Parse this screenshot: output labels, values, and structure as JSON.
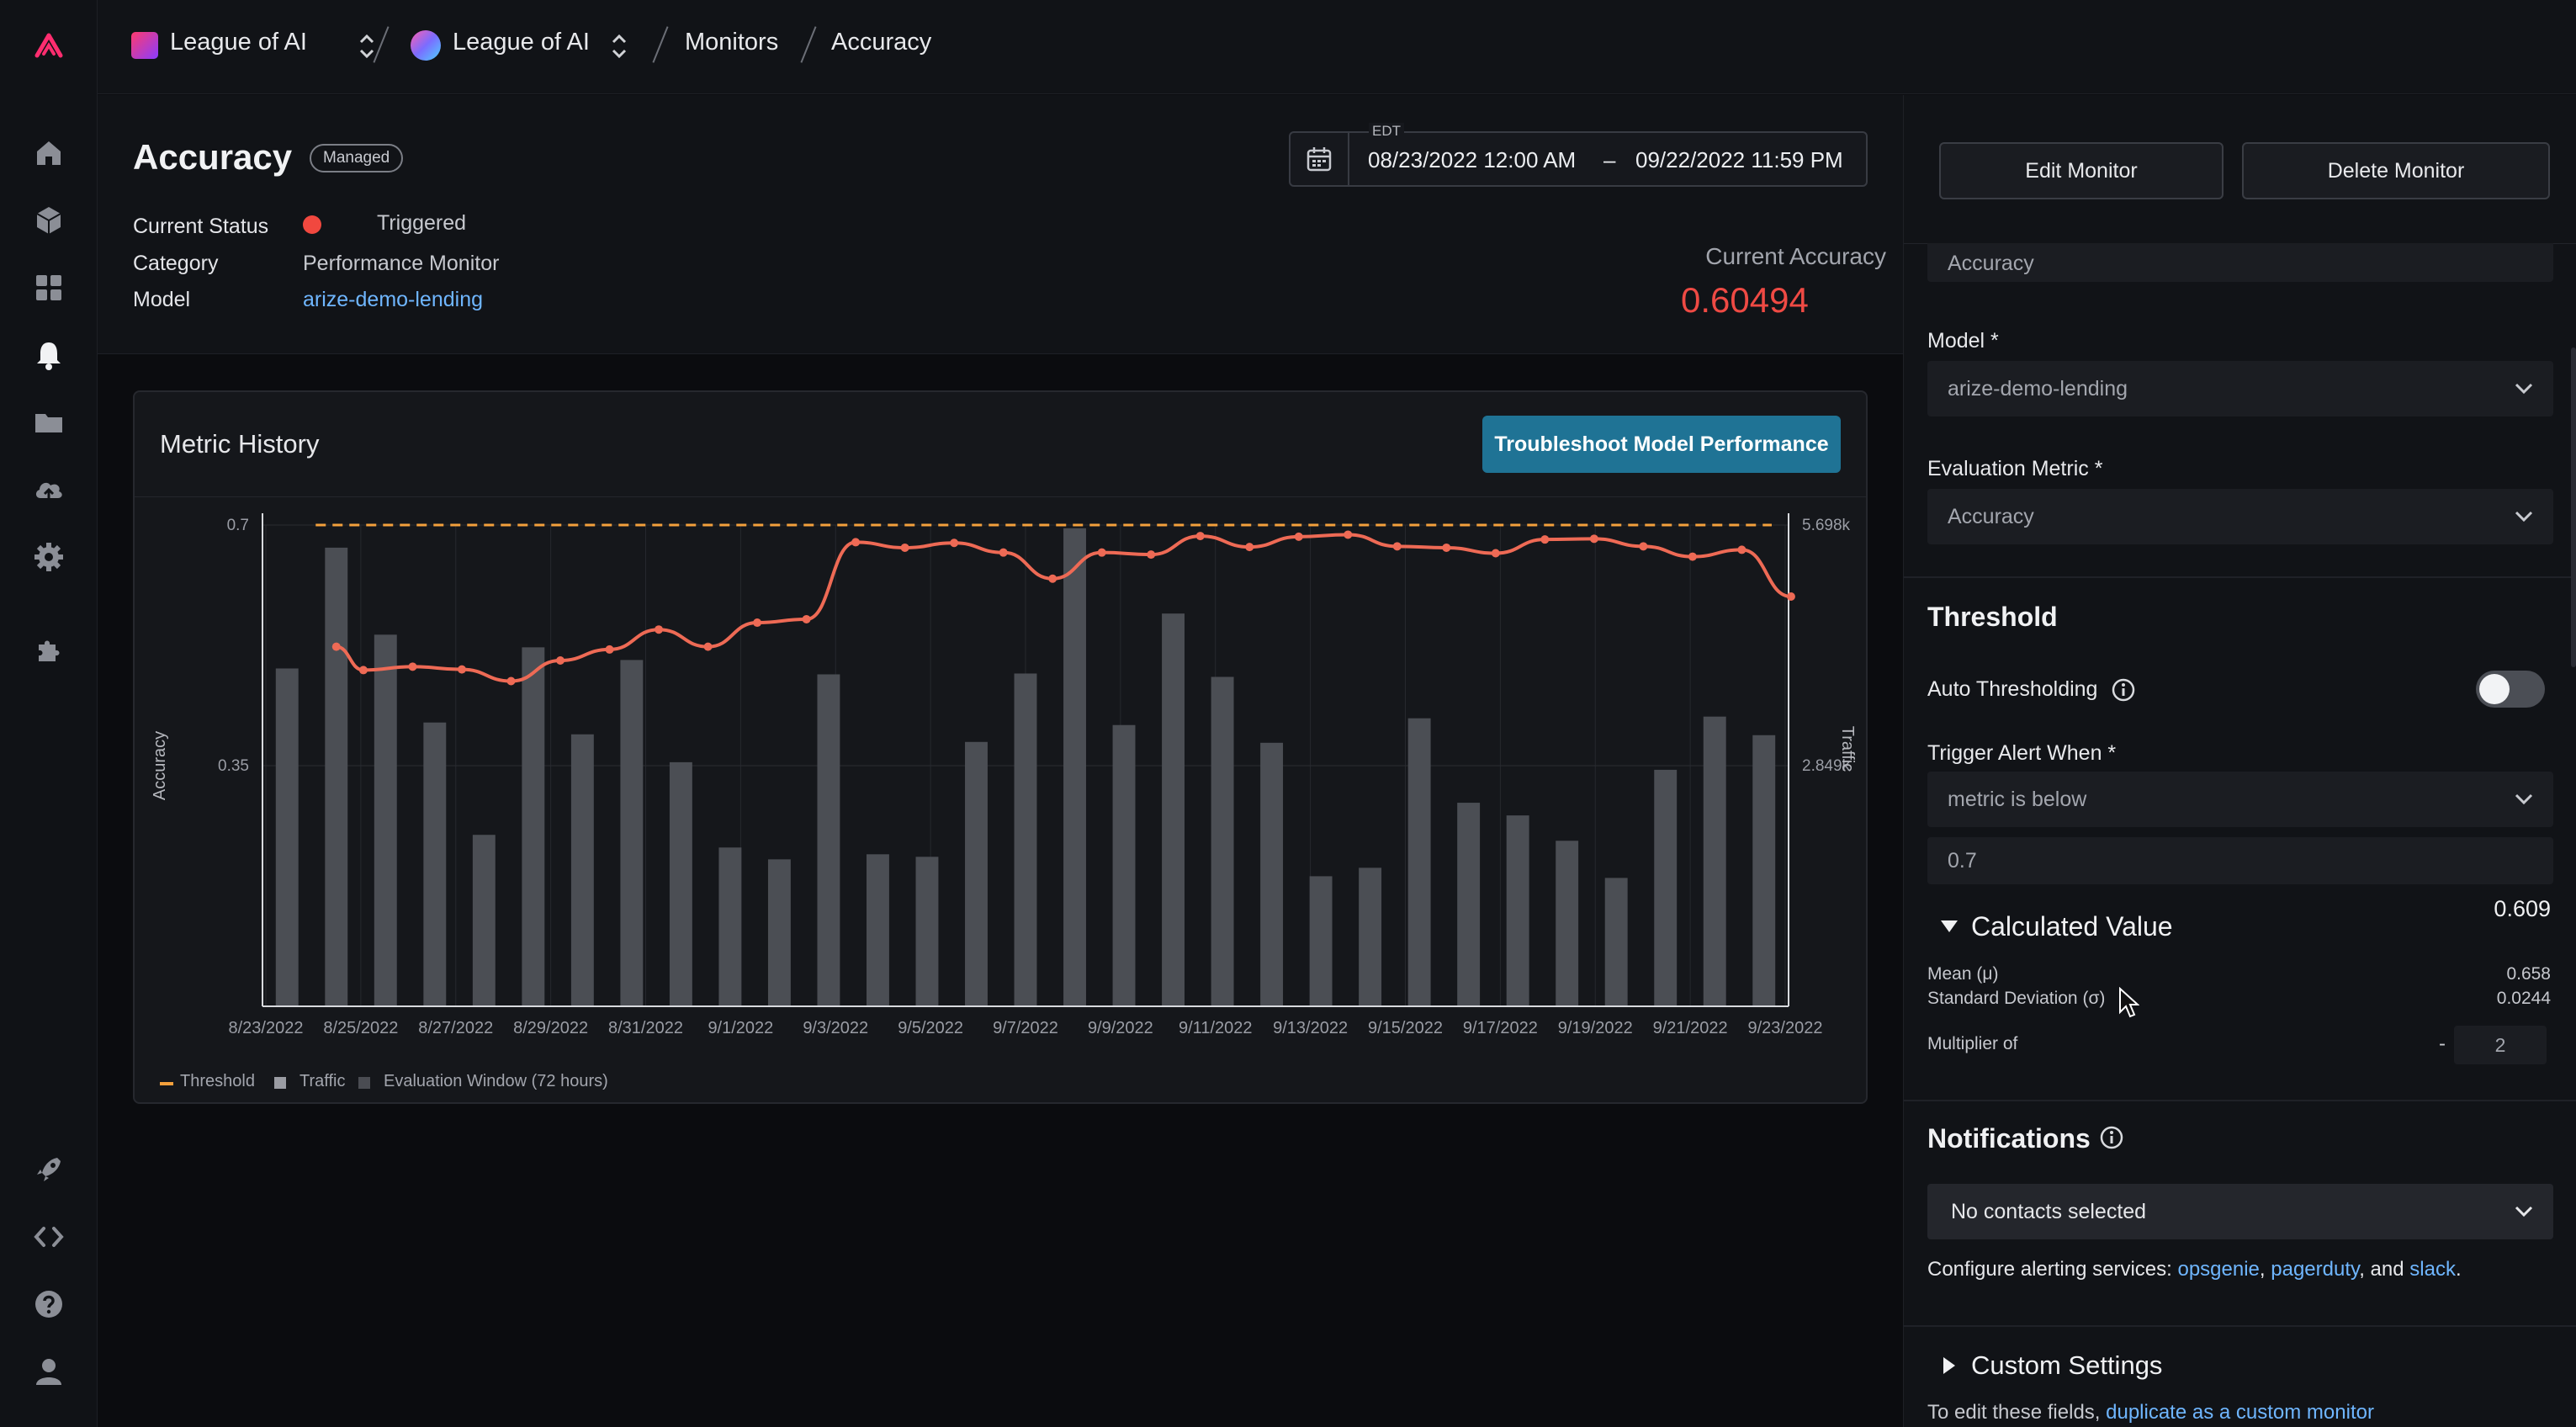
{
  "breadcrumb": {
    "space": "League of AI",
    "org": "League of AI",
    "section": "Monitors",
    "page": "Accuracy"
  },
  "header": {
    "title": "Accuracy",
    "badge": "Managed",
    "status_label": "Current Status",
    "status_value": "Triggered",
    "category_label": "Category",
    "category_value": "Performance Monitor",
    "model_label": "Model",
    "model_value": "arize-demo-lending",
    "date_tz": "EDT",
    "date_start": "08/23/2022 12:00 AM",
    "date_sep": "–",
    "date_end": "09/22/2022 11:59 PM",
    "current_label": "Current Accuracy",
    "current_value": "0.60494"
  },
  "card": {
    "title": "Metric History",
    "troubleshoot_label": "Troubleshoot Model Performance"
  },
  "chart_data": {
    "type": "bar",
    "ylabel": "Accuracy",
    "y2label": "Traffic",
    "ylim": [
      0,
      0.7
    ],
    "y2lim": [
      0,
      5.698
    ],
    "y_ticks": [
      "0.35",
      "0.7"
    ],
    "y2_ticks": [
      "2.849k",
      "5.698k"
    ],
    "x_tick_labels": [
      "8/23/2022",
      "8/25/2022",
      "8/27/2022",
      "8/29/2022",
      "8/31/2022",
      "9/1/2022",
      "9/3/2022",
      "9/5/2022",
      "9/7/2022",
      "9/9/2022",
      "9/11/2022",
      "9/13/2022",
      "9/15/2022",
      "9/17/2022",
      "9/19/2022",
      "9/21/2022",
      "9/23/2022"
    ],
    "threshold": 0.7,
    "traffic": [
      4.0,
      5.43,
      4.4,
      3.36,
      2.03,
      4.25,
      3.22,
      4.1,
      2.89,
      1.88,
      1.74,
      3.93,
      1.8,
      1.77,
      3.13,
      3.94,
      5.66,
      3.33,
      4.65,
      3.9,
      3.12,
      1.54,
      1.64,
      3.41,
      2.41,
      2.26,
      1.96,
      1.52,
      2.8,
      3.43,
      3.21
    ],
    "accuracy": [
      0.523,
      0.489,
      0.494,
      0.49,
      0.473,
      0.503,
      0.519,
      0.548,
      0.523,
      0.558,
      0.563,
      0.675,
      0.667,
      0.674,
      0.66,
      0.622,
      0.66,
      0.657,
      0.684,
      0.668,
      0.683,
      0.686,
      0.669,
      0.667,
      0.659,
      0.679,
      0.68,
      0.669,
      0.654,
      0.664,
      0.596
    ],
    "legend": [
      "Threshold",
      "Traffic",
      "Evaluation Window (72 hours)"
    ],
    "grid": true,
    "legend_position": "bottom-left"
  },
  "panel": {
    "edit_label": "Edit Monitor",
    "delete_label": "Delete Monitor",
    "name_value": "Accuracy",
    "model_label": "Model *",
    "model_value": "arize-demo-lending",
    "metric_label": "Evaluation Metric *",
    "metric_value": "Accuracy",
    "threshold_title": "Threshold",
    "auto_label": "Auto Thresholding",
    "trigger_label": "Trigger Alert When *",
    "trigger_value": "metric is below",
    "threshold_value": "0.7",
    "calc_title": "Calculated Value",
    "calc_value": "0.609",
    "mean_label": "Mean (μ)",
    "mean_value": "0.658",
    "std_label": "Standard Deviation (σ)",
    "std_value": "0.0244",
    "mult_label": "Multiplier of",
    "mult_sign": "-",
    "mult_value": "2",
    "notif_title": "Notifications",
    "contacts_value": "No contacts selected",
    "config_prefix": "Configure alerting services:",
    "svc1": "opsgenie",
    "svc2": "pagerduty",
    "svc_and": ", and",
    "svc3": "slack",
    "custom_title": "Custom Settings",
    "edit_prefix": "To edit these fields,",
    "edit_link": "duplicate as a custom monitor"
  }
}
